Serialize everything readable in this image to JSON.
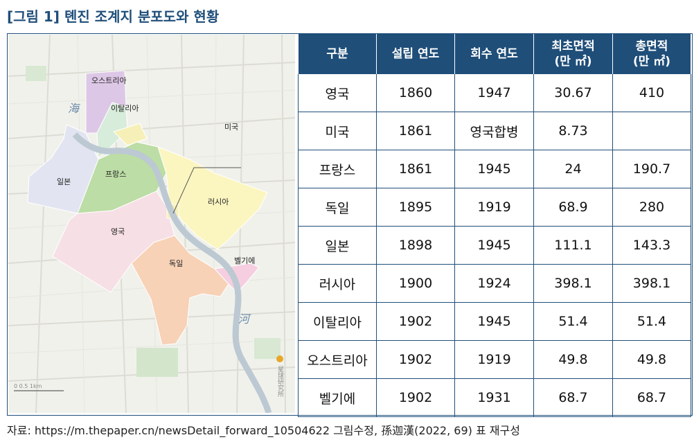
{
  "figure": {
    "title_prefix": "[그림 1]",
    "title_text": "톈진 조계지 분포도와 현황"
  },
  "map": {
    "labels": {
      "austria": "오스트리아",
      "italy": "이탈리아",
      "usa": "미국",
      "japan": "일본",
      "france": "프랑스",
      "russia": "러시아",
      "britain": "영국",
      "germany": "독일",
      "belgium": "벨기에",
      "hai_top": "海",
      "he_bottom": "河",
      "logo_text": "星球研究所",
      "scale_text": "0  0.5  1km"
    },
    "colors": {
      "austria": "#ddc7e6",
      "italy": "#d7ecda",
      "usa": "#f6f0b8",
      "japan": "#e2e5f1",
      "france": "#bcdda5",
      "russia": "#fbf6c0",
      "britain": "#f7dfe6",
      "germany": "#f7d2b7",
      "belgium": "#f5cfe0",
      "river": "#bcc9d3"
    }
  },
  "table": {
    "headers": [
      {
        "line1": "구분",
        "line2": ""
      },
      {
        "line1": "설립 연도",
        "line2": ""
      },
      {
        "line1": "회수 연도",
        "line2": ""
      },
      {
        "line1": "최초면적",
        "line2": "(만 ㎡)"
      },
      {
        "line1": "총면적",
        "line2": "(만 ㎡)"
      }
    ],
    "rows": [
      [
        "영국",
        "1860",
        "1947",
        "30.67",
        "410"
      ],
      [
        "미국",
        "1861",
        "영국합병",
        "8.73",
        ""
      ],
      [
        "프랑스",
        "1861",
        "1945",
        "24",
        "190.7"
      ],
      [
        "독일",
        "1895",
        "1919",
        "68.9",
        "280"
      ],
      [
        "일본",
        "1898",
        "1945",
        "111.1",
        "143.3"
      ],
      [
        "러시아",
        "1900",
        "1924",
        "398.1",
        "398.1"
      ],
      [
        "이탈리아",
        "1902",
        "1945",
        "51.4",
        "51.4"
      ],
      [
        "오스트리아",
        "1902",
        "1919",
        "49.8",
        "49.8"
      ],
      [
        "벨기에",
        "1902",
        "1931",
        "68.7",
        "68.7"
      ]
    ]
  },
  "source": {
    "text": "자료: https://m.thepaper.cn/newsDetail_forward_10504622 그림수정, 孫迦漢(2022, 69) 표 재구성"
  }
}
